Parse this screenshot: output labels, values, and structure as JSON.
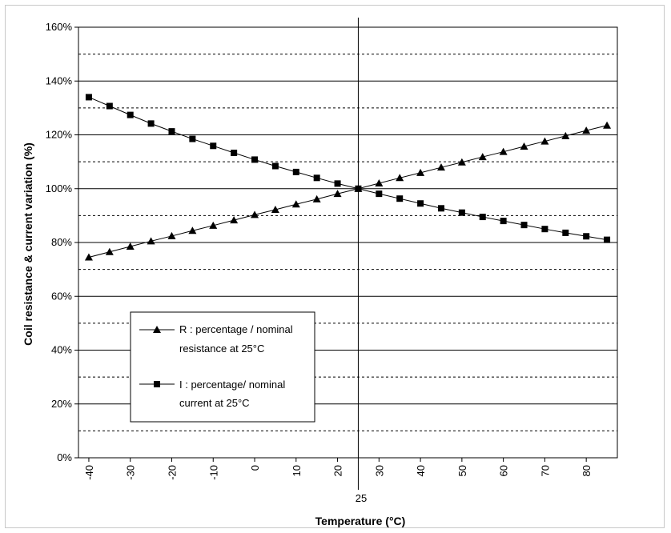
{
  "chart_data": {
    "type": "line",
    "title": "",
    "xlabel": "Temperature (°C)",
    "ylabel": "Coil resistance & current variation (%)",
    "xlim": [
      -42.5,
      87.5
    ],
    "ylim": [
      0,
      160
    ],
    "x_tick_labels": [
      "-40",
      "-30",
      "-20",
      "-10",
      "0",
      "10",
      "20",
      "30",
      "40",
      "50",
      "60",
      "70",
      "80"
    ],
    "x_ticks": [
      -40,
      -30,
      -20,
      -10,
      0,
      10,
      20,
      30,
      40,
      50,
      60,
      70,
      80
    ],
    "y_tick_labels": [
      "0%",
      "20%",
      "40%",
      "60%",
      "80%",
      "100%",
      "120%",
      "140%",
      "160%"
    ],
    "y_ticks": [
      0,
      20,
      40,
      60,
      80,
      100,
      120,
      140,
      160
    ],
    "grid_major_y": [
      20,
      40,
      60,
      80,
      100,
      120,
      140
    ],
    "grid_minor_y": [
      10,
      30,
      50,
      70,
      90,
      110,
      130,
      150
    ],
    "reference_line": {
      "x": 25,
      "label": "25"
    },
    "legend_position": "lower-left",
    "x": [
      -40,
      -35,
      -30,
      -25,
      -20,
      -15,
      -10,
      -5,
      0,
      5,
      10,
      15,
      20,
      25,
      30,
      35,
      40,
      45,
      50,
      55,
      60,
      65,
      70,
      75,
      80,
      85
    ],
    "series": [
      {
        "name_lines": [
          "R : percentage / nominal",
          "resistance at 25°C"
        ],
        "marker": "triangle",
        "values": [
          74.5,
          76.5,
          78.5,
          80.5,
          82.4,
          84.4,
          86.3,
          88.3,
          90.3,
          92.2,
          94.2,
          96.1,
          98.1,
          100.0,
          102.0,
          104.0,
          105.9,
          107.9,
          109.8,
          111.8,
          113.7,
          115.7,
          117.6,
          119.6,
          121.6,
          123.5
        ]
      },
      {
        "name_lines": [
          "I : percentage/ nominal",
          "current at 25°C"
        ],
        "marker": "square",
        "values": [
          134.0,
          130.7,
          127.4,
          124.2,
          121.3,
          118.5,
          115.9,
          113.3,
          110.8,
          108.4,
          106.2,
          104.0,
          101.9,
          100.0,
          98.1,
          96.3,
          94.5,
          92.7,
          91.1,
          89.5,
          88.0,
          86.5,
          85.0,
          83.6,
          82.3,
          81.0
        ]
      }
    ]
  }
}
